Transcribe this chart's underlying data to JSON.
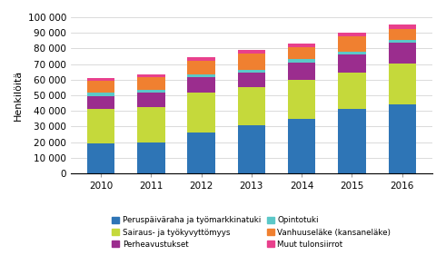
{
  "years": [
    2010,
    2011,
    2012,
    2013,
    2014,
    2015,
    2016
  ],
  "series_order": [
    "Peruspäiväraha ja työmarkkinatuki",
    "Sairaus- ja työkyvyttömyys",
    "Perheavustukset",
    "Opintotuki",
    "Vanhuuseläke (kansaneläke)",
    "Muut tulonsiirrot"
  ],
  "series": {
    "Peruspäiväraha ja työmarkkinatuki": [
      19000,
      20000,
      26000,
      31000,
      35000,
      41000,
      44000
    ],
    "Sairaus- ja työkyvyttömyys": [
      22000,
      22500,
      26000,
      24000,
      25000,
      23500,
      26500
    ],
    "Perheavustukset": [
      8500,
      9000,
      9500,
      9500,
      11000,
      11500,
      13000
    ],
    "Opintotuki": [
      2000,
      2000,
      2000,
      2000,
      2000,
      2000,
      2000
    ],
    "Vanhuuseläke (kansaneläke)": [
      7500,
      8000,
      8500,
      10000,
      8000,
      9500,
      7000
    ],
    "Muut tulonsiirrot": [
      2097,
      1597,
      2500,
      2500,
      2000,
      2500,
      2963
    ]
  },
  "colors": {
    "Peruspäiväraha ja työmarkkinatuki": "#2E75B6",
    "Sairaus- ja työkyvyttömyys": "#C5D93B",
    "Perheavustukset": "#9B2D8E",
    "Opintotuki": "#5BC8C8",
    "Vanhuuseläke (kansaneläke)": "#F08030",
    "Muut tulonsiirrot": "#E8408C"
  },
  "ylabel": "Henkilöitä",
  "ylim": [
    0,
    100000
  ],
  "yticks": [
    0,
    10000,
    20000,
    30000,
    40000,
    50000,
    60000,
    70000,
    80000,
    90000,
    100000
  ],
  "ytick_labels": [
    "0",
    "10 000",
    "20 000",
    "30 000",
    "40 000",
    "50 000",
    "60 000",
    "70 000",
    "80 000",
    "90 000",
    "100 000"
  ],
  "legend_col1": [
    "Peruspäiväraha ja työmarkkinatuki",
    "Perheavustukset",
    "Vanhuuseläke (kansaneläke)"
  ],
  "legend_col2": [
    "Sairaus- ja työkyvyttömyys",
    "Opintotuki",
    "Muut tulonsiirrot"
  ],
  "background_color": "#FFFFFF",
  "grid_color": "#CCCCCC"
}
